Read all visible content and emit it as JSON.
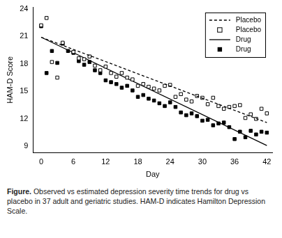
{
  "chart_data": {
    "type": "scatter",
    "x_label": "Day",
    "y_label": "HAM-D Score",
    "caption_label": "Figure.",
    "caption": "Observed vs estimated depression severity time trends for drug vs placebo in 37 adult and geriatric studies. HAM-D indicates Hamilton Depression Scale.",
    "xlim": [
      -1.5,
      43
    ],
    "ylim": [
      8.3,
      24.2
    ],
    "xticks": [
      0,
      6,
      12,
      18,
      24,
      30,
      36,
      42
    ],
    "yticks": [
      9,
      12,
      15,
      18,
      21,
      24
    ],
    "grid": false,
    "legend": "upper right",
    "series": [
      {
        "name": "Placebo",
        "type": "line",
        "line_style": "dashed",
        "marker": "none",
        "color": "#000000",
        "x": [
          0,
          42
        ],
        "values": [
          20.9,
          11.6
        ]
      },
      {
        "name": "Placebo",
        "type": "scatter",
        "marker": "square_open",
        "color": "#000000",
        "x": [
          0,
          1,
          2,
          3,
          4,
          6,
          7,
          8,
          9,
          10,
          11,
          12,
          13,
          14,
          15,
          16,
          17,
          18,
          19,
          20,
          21,
          22,
          23,
          24,
          25,
          26,
          27,
          28,
          29,
          30,
          31,
          32,
          33,
          34,
          35,
          36,
          37,
          38,
          39,
          40,
          41,
          42
        ],
        "values": [
          22.2,
          23.0,
          18.2,
          16.5,
          20.3,
          19.3,
          18.6,
          18.5,
          18.8,
          17.8,
          17.3,
          17.7,
          17.0,
          16.6,
          17.0,
          16.5,
          16.3,
          15.6,
          15.8,
          15.5,
          15.3,
          15.1,
          15.6,
          15.7,
          14.4,
          14.7,
          14.1,
          13.9,
          14.5,
          14.3,
          13.6,
          14.3,
          13.4,
          13.1,
          13.3,
          13.4,
          13.5,
          12.1,
          12.5,
          12.0,
          13.1,
          12.6
        ]
      },
      {
        "name": "Drug",
        "type": "line",
        "line_style": "solid",
        "marker": "none",
        "color": "#000000",
        "x": [
          0,
          42
        ],
        "values": [
          20.9,
          9.1
        ]
      },
      {
        "name": "Drug",
        "type": "scatter",
        "marker": "square",
        "color": "#000000",
        "x": [
          0,
          1,
          2,
          3,
          4,
          5,
          6,
          7,
          8,
          9,
          10,
          11,
          12,
          13,
          14,
          15,
          16,
          17,
          18,
          19,
          20,
          21,
          22,
          23,
          24,
          25,
          26,
          27,
          28,
          29,
          30,
          31,
          32,
          33,
          34,
          35,
          36,
          37,
          38,
          39,
          40,
          41,
          42
        ],
        "values": [
          22.1,
          17.0,
          19.4,
          18.1,
          20.2,
          19.4,
          19.2,
          18.3,
          17.9,
          18.2,
          17.3,
          17.0,
          16.2,
          16.0,
          15.8,
          15.4,
          15.6,
          15.1,
          14.4,
          14.6,
          14.2,
          14.0,
          13.7,
          13.4,
          13.8,
          13.3,
          12.7,
          12.4,
          12.6,
          12.3,
          11.8,
          11.9,
          11.3,
          11.5,
          11.6,
          11.1,
          9.8,
          10.6,
          10.0,
          10.7,
          10.3,
          10.6,
          10.5
        ]
      }
    ]
  }
}
